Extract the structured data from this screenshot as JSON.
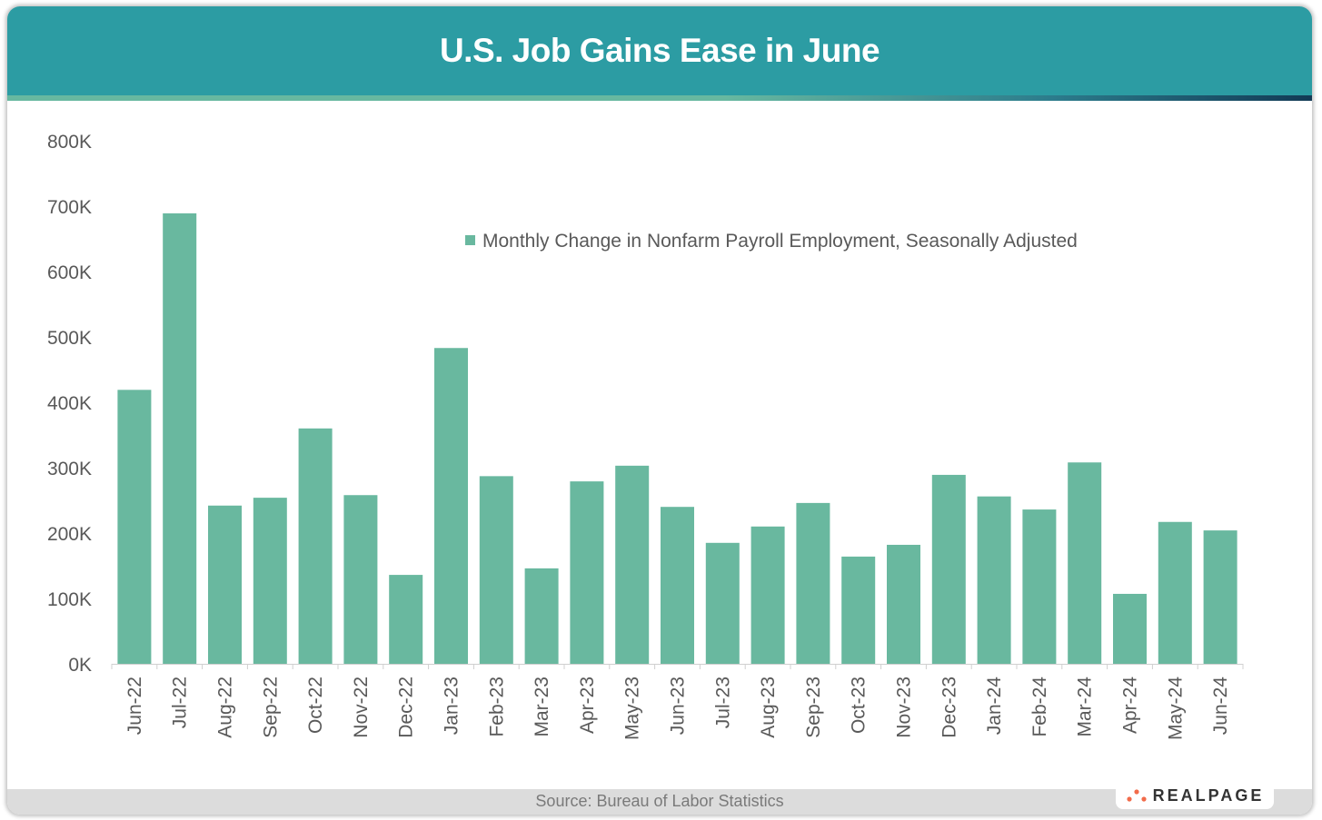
{
  "title": "U.S. Job Gains Ease in June",
  "source": "Source: Bureau of Labor Statistics",
  "logo_text": "REALPAGE",
  "colors": {
    "header": "#2c9ca3",
    "bar": "#69b89f",
    "logo_dots": "#f26b4a"
  },
  "chart_data": {
    "type": "bar",
    "title": "",
    "xlabel": "",
    "ylabel": "",
    "ylim": [
      0,
      800
    ],
    "yticks": [
      "0K",
      "100K",
      "200K",
      "300K",
      "400K",
      "500K",
      "600K",
      "700K",
      "800K"
    ],
    "grid": false,
    "legend_position": "top-right",
    "categories": [
      "Jun-22",
      "Jul-22",
      "Aug-22",
      "Sep-22",
      "Oct-22",
      "Nov-22",
      "Dec-22",
      "Jan-23",
      "Feb-23",
      "Mar-23",
      "Apr-23",
      "May-23",
      "Jun-23",
      "Jul-23",
      "Aug-23",
      "Sep-23",
      "Oct-23",
      "Nov-23",
      "Dec-23",
      "Jan-24",
      "Feb-24",
      "Mar-24",
      "Apr-24",
      "May-24",
      "Jun-24"
    ],
    "series": [
      {
        "name": "Monthly Change in Nonfarm Payroll Employment, Seasonally Adjusted",
        "values": [
          419,
          689,
          242,
          254,
          360,
          258,
          136,
          483,
          287,
          146,
          279,
          303,
          240,
          185,
          210,
          246,
          164,
          182,
          289,
          256,
          236,
          308,
          107,
          217,
          204
        ]
      }
    ]
  }
}
